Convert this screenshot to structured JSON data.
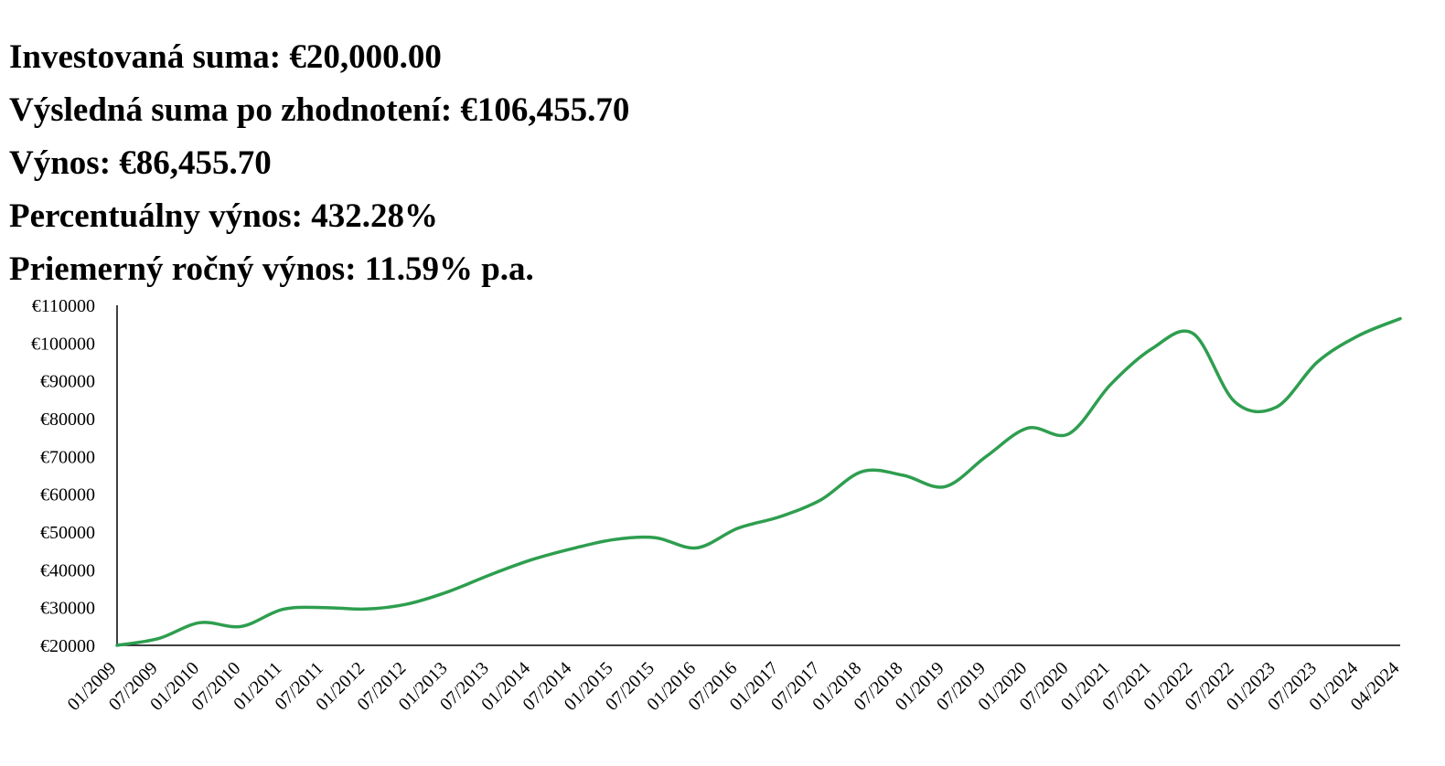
{
  "summary": {
    "invested": "Investovaná suma: €20,000.00",
    "final": "Výsledná suma po zhodnotení: €106,455.70",
    "return": "Výnos: €86,455.70",
    "percent_return": "Percentuálny výnos: 432.28%",
    "annual_return": "Priemerný ročný výnos: 11.59% p.a."
  },
  "chart_data": {
    "type": "line",
    "title": "",
    "xlabel": "",
    "ylabel": "",
    "line_color": "#2e9e4f",
    "grid": false,
    "legend": "none",
    "ylim": [
      20000,
      110000
    ],
    "yticks": [
      20000,
      30000,
      40000,
      50000,
      60000,
      70000,
      80000,
      90000,
      100000,
      110000
    ],
    "ytick_labels": [
      "€20000",
      "€30000",
      "€40000",
      "€50000",
      "€60000",
      "€70000",
      "€80000",
      "€90000",
      "€100000",
      "€110000"
    ],
    "xtick_labels": [
      "01/2009",
      "07/2009",
      "01/2010",
      "07/2010",
      "01/2011",
      "07/2011",
      "01/2012",
      "07/2012",
      "01/2013",
      "07/2013",
      "01/2014",
      "07/2014",
      "01/2015",
      "07/2015",
      "01/2016",
      "07/2016",
      "01/2017",
      "07/2017",
      "01/2018",
      "07/2018",
      "01/2019",
      "07/2019",
      "01/2020",
      "07/2020",
      "01/2021",
      "07/2021",
      "01/2022",
      "07/2022",
      "01/2023",
      "07/2023",
      "01/2024",
      "04/2024"
    ],
    "series": [
      {
        "x": [
          "01/2009",
          "07/2009",
          "01/2010",
          "07/2010",
          "01/2011",
          "07/2011",
          "01/2012",
          "07/2012",
          "01/2013",
          "07/2013",
          "01/2014",
          "07/2014",
          "01/2015",
          "07/2015",
          "01/2016",
          "07/2016",
          "01/2017",
          "07/2017",
          "01/2018",
          "07/2018",
          "01/2019",
          "07/2019",
          "01/2020",
          "07/2020",
          "01/2021",
          "07/2021",
          "01/2022",
          "07/2022",
          "01/2023",
          "07/2023",
          "01/2024",
          "04/2024"
        ],
        "values": [
          20000,
          21800,
          26000,
          25000,
          29500,
          30000,
          29600,
          30900,
          34200,
          38600,
          42600,
          45600,
          48000,
          48500,
          45800,
          51000,
          54000,
          58500,
          66000,
          65000,
          62000,
          70000,
          77500,
          76000,
          89000,
          98500,
          102500,
          84500,
          83000,
          95000,
          102000,
          106455.7
        ]
      }
    ]
  }
}
